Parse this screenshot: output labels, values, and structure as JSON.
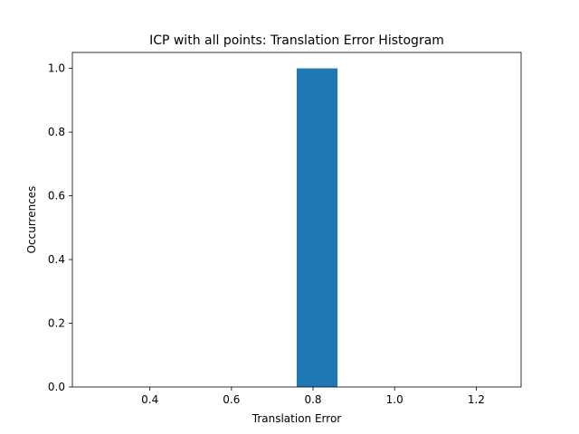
{
  "chart_data": {
    "type": "bar",
    "title": "ICP with all points: Translation Error Histogram",
    "xlabel": "Translation Error",
    "ylabel": "Occurrences",
    "xlim": [
      0.21,
      1.31
    ],
    "ylim": [
      0,
      1.05
    ],
    "xticks": [
      0.4,
      0.6,
      0.8,
      1.0,
      1.2
    ],
    "xtick_labels": [
      "0.4",
      "0.6",
      "0.8",
      "1.0",
      "1.2"
    ],
    "yticks": [
      0.0,
      0.2,
      0.4,
      0.6,
      0.8,
      1.0
    ],
    "ytick_labels": [
      "0.0",
      "0.2",
      "0.4",
      "0.6",
      "0.8",
      "1.0"
    ],
    "bins": [
      {
        "x0": 0.76,
        "x1": 0.86,
        "value": 1
      }
    ],
    "bar_color": "#1f77b4",
    "grid": false,
    "legend": false
  }
}
